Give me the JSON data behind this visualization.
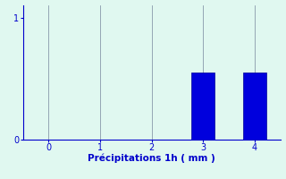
{
  "categories": [
    0,
    1,
    2,
    3,
    4
  ],
  "values": [
    0,
    0,
    0,
    0.55,
    0.55
  ],
  "bar_color": "#0000DD",
  "bar_edge_color": "#000099",
  "background_color": "#E0F8F0",
  "xlabel": "Précipitations 1h ( mm )",
  "xlabel_color": "#0000CC",
  "xlabel_fontsize": 7.5,
  "ylim": [
    0,
    1.1
  ],
  "xlim": [
    -0.5,
    4.5
  ],
  "yticks": [
    0,
    1
  ],
  "xticks": [
    0,
    1,
    2,
    3,
    4
  ],
  "tick_color": "#0000CC",
  "tick_fontsize": 7,
  "grid_color": "#8899AA",
  "grid_linewidth": 0.6,
  "bar_width": 0.45,
  "spine_color": "#0000CC",
  "spine_linewidth": 0.8
}
